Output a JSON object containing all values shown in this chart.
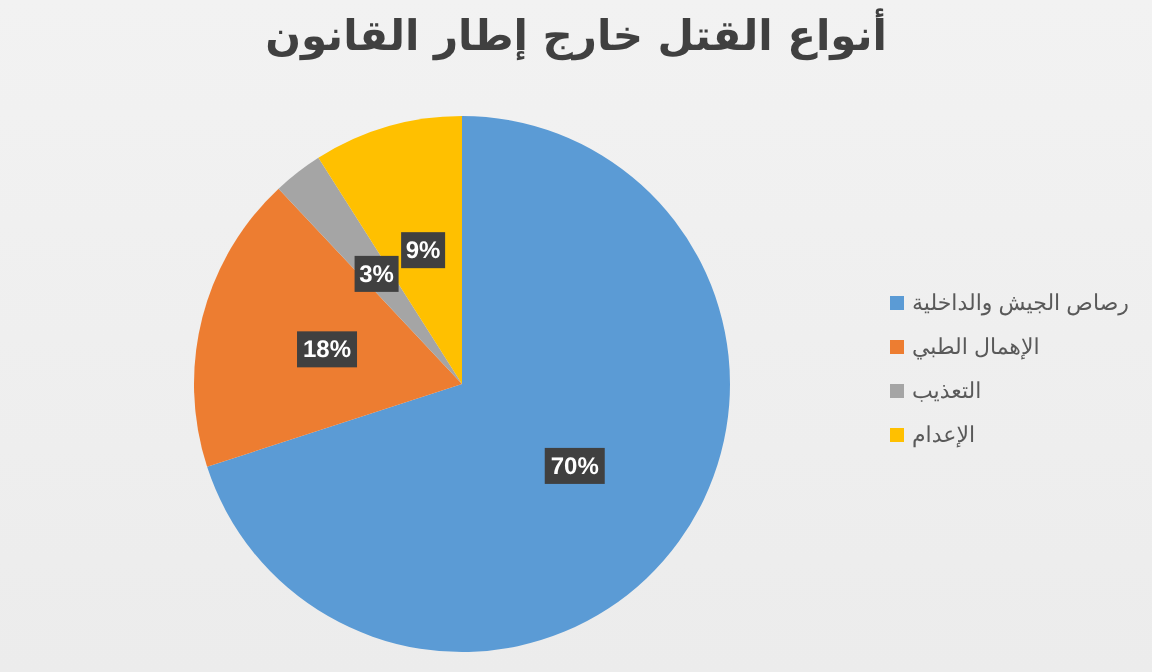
{
  "chart_data": {
    "type": "pie",
    "title": "أنواع القتل خارج إطار القانون",
    "categories": [
      "رصاص الجيش والداخلية",
      "الإهمال الطبي",
      "التعذيب",
      "الإعدام"
    ],
    "values": [
      70,
      18,
      3,
      9
    ],
    "colors": [
      "#5b9bd5",
      "#ed7d31",
      "#a5a5a5",
      "#ffc000"
    ],
    "value_labels": [
      "70%",
      "18%",
      "3%",
      "9%"
    ],
    "legend": "right"
  }
}
